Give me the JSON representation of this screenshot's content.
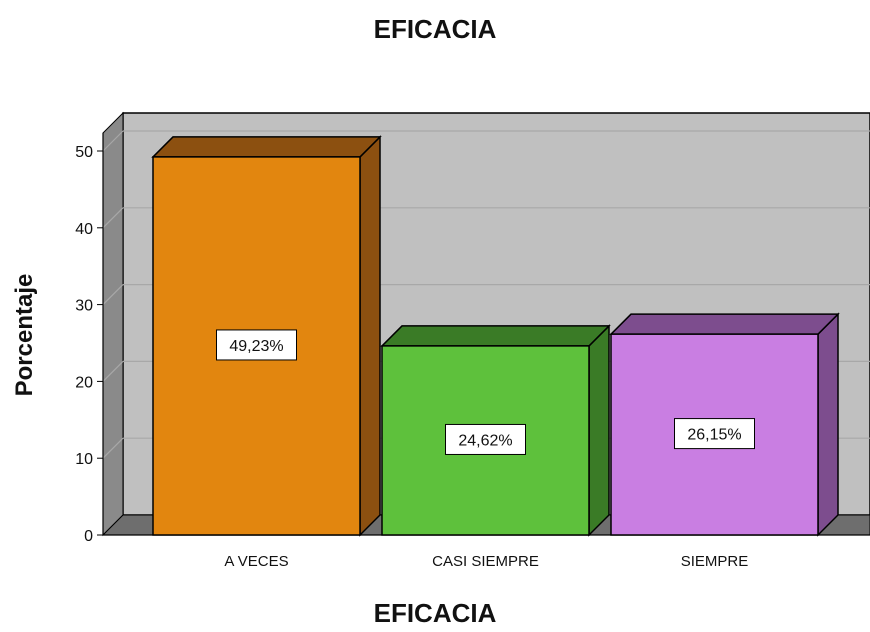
{
  "chart_data": {
    "type": "bar",
    "title": "EFICACIA",
    "xlabel": "EFICACIA",
    "ylabel": "Porcentaje",
    "categories": [
      "A VECES",
      "CASI SIEMPRE",
      "SIEMPRE"
    ],
    "values": [
      49.23,
      24.62,
      26.15
    ],
    "data_labels": [
      "49,23%",
      "24,62%",
      "26,15%"
    ],
    "ylim": [
      0,
      50
    ],
    "yticks": [
      0,
      10,
      20,
      30,
      40,
      50
    ],
    "grid": true,
    "three_d": true,
    "colors": {
      "bars": [
        "#e2860f",
        "#5ec13c",
        "#c97ee2"
      ],
      "bars_dark": [
        "#8c5010",
        "#3a7b26",
        "#7d4d8e"
      ],
      "wall": "#c0c0c0",
      "floor": "#6e6e6e",
      "side_wall": "#8a8a8a"
    }
  }
}
